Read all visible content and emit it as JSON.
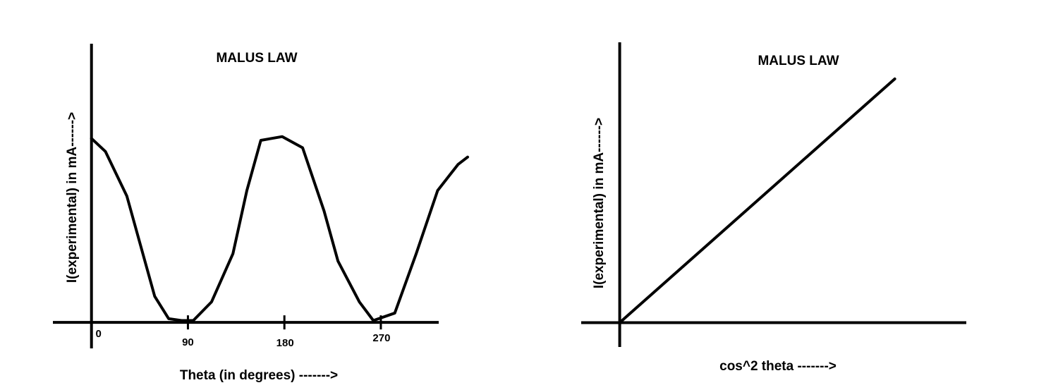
{
  "chart_data": [
    {
      "type": "line",
      "title": "MALUS LAW",
      "x_label": "Theta (in degrees) ------->",
      "y_label": "I(experimental) in mA------>",
      "xlim": [
        -36,
        324
      ],
      "ylim": [
        -0.14,
        1.5
      ],
      "xticks": [
        0,
        90,
        180,
        270
      ],
      "series": [
        {
          "color": "#000000",
          "x": [
            0,
            13,
            33,
            46,
            59,
            72,
            84,
            95,
            112,
            132,
            145,
            158,
            178,
            197,
            217,
            230,
            250,
            263,
            283,
            303,
            323,
            342,
            351
          ],
          "values": [
            0.99,
            0.92,
            0.68,
            0.41,
            0.14,
            0.02,
            0.01,
            0.01,
            0.11,
            0.37,
            0.71,
            0.98,
            1.0,
            0.94,
            0.6,
            0.33,
            0.11,
            0.01,
            0.05,
            0.37,
            0.71,
            0.85,
            0.89
          ]
        }
      ]
    },
    {
      "type": "line",
      "title": "MALUS LAW",
      "x_label": "cos^2 theta ------->",
      "y_label": "I(experimental) in mA------>",
      "xlim": [
        -0.14,
        1.26
      ],
      "ylim": [
        -0.1,
        1.15
      ],
      "series": [
        {
          "color": "#000000",
          "x": [
            0,
            1
          ],
          "values": [
            0,
            1
          ]
        }
      ]
    }
  ]
}
